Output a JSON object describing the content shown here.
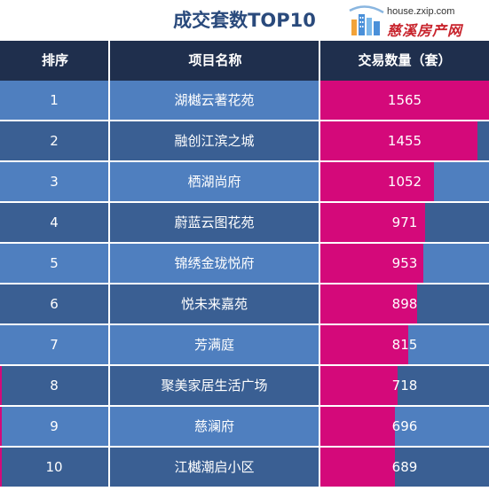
{
  "chart_data": {
    "type": "table",
    "title": "成交套数TOP10",
    "columns": [
      "排序",
      "项目名称",
      "交易数量（套）"
    ],
    "rows": [
      {
        "rank": "1",
        "name": "湖樾云著花苑",
        "value": 1565
      },
      {
        "rank": "2",
        "name": "融创江滨之城",
        "value": 1455
      },
      {
        "rank": "3",
        "name": "栖湖尚府",
        "value": 1052
      },
      {
        "rank": "4",
        "name": "蔚蓝云图花苑",
        "value": 971
      },
      {
        "rank": "5",
        "name": "锦绣金珑悦府",
        "value": 953
      },
      {
        "rank": "6",
        "name": "悦未来嘉苑",
        "value": 898
      },
      {
        "rank": "7",
        "name": "芳满庭",
        "value": 815
      },
      {
        "rank": "8",
        "name": "聚美家居生活广场",
        "value": 718
      },
      {
        "rank": "9",
        "name": "慈澜府",
        "value": 696
      },
      {
        "rank": "10",
        "name": "江樾潮启小区",
        "value": 689
      }
    ],
    "bar_max": 1565
  },
  "logo": {
    "url": "house.zxip.com",
    "name": "慈溪房产网",
    "icon": "city-buildings-icon"
  },
  "colors": {
    "header_bg": "#1f2f4d",
    "row_light": "#4f7fbf",
    "row_dark": "#3a5f93",
    "bar": "#d4097a",
    "title": "#2a4a7c"
  }
}
